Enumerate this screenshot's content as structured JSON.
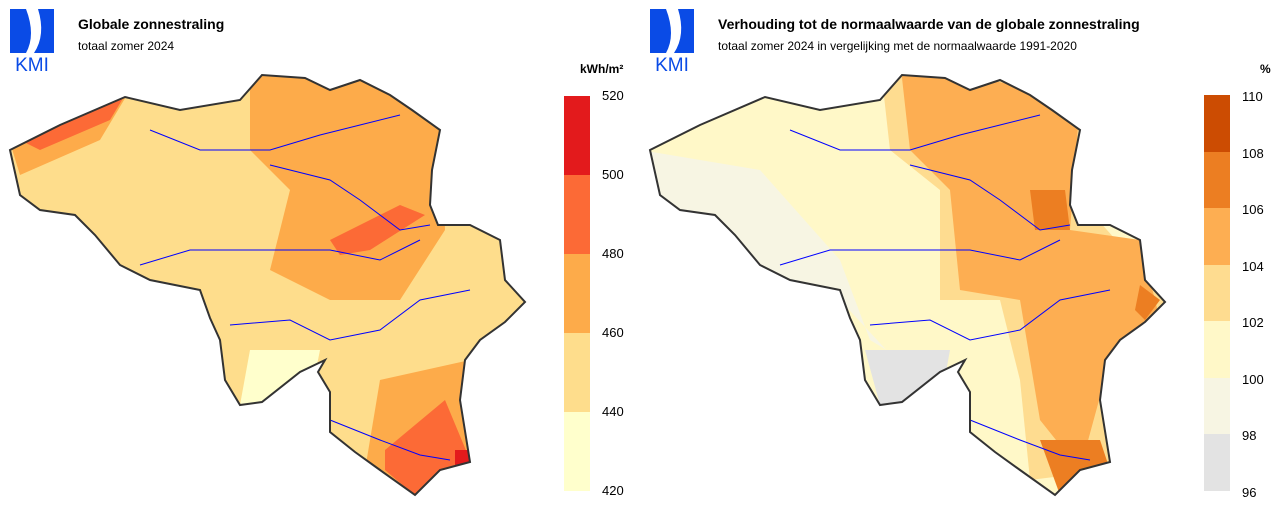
{
  "logo_text": "KMI",
  "colors": {
    "brand": "#0a4be6",
    "river": "#0000ff",
    "border": "#333333",
    "province": "#aaaaaa"
  },
  "left": {
    "title": "Globale zonnestraling",
    "subtitle": "totaal zomer 2024",
    "unit": "kWh/m²",
    "legend": {
      "labels": [
        "520",
        "500",
        "480",
        "460",
        "440",
        "420"
      ],
      "colors": [
        "#e31a1c",
        "#fc6a36",
        "#fdab4a",
        "#fedd8c",
        "#ffffcc"
      ]
    }
  },
  "right": {
    "title": "Verhouding tot de normaalwaarde van de globale zonnestraling",
    "subtitle": "totaal zomer 2024 in vergelijking met de normaalwaarde 1991-2020",
    "unit": "%",
    "legend": {
      "labels": [
        "110",
        "108",
        "106",
        "104",
        "102",
        "100",
        "98",
        "96"
      ],
      "colors": [
        "#cc4c02",
        "#ec7e22",
        "#fdae52",
        "#fedc90",
        "#fff8c8",
        "#f7f5e3",
        "#e3e3e3"
      ]
    }
  }
}
